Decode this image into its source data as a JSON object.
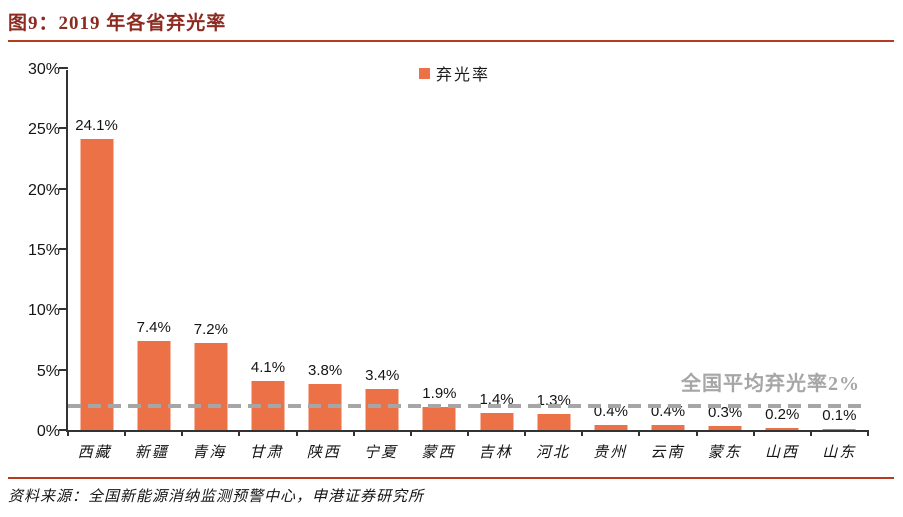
{
  "title": "图9：2019 年各省弃光率",
  "source": "资料来源：全国新能源消纳监测预警中心，申港证券研究所",
  "colors": {
    "bar": "#ED7146",
    "title_text": "#8B2B22",
    "divider": "#B53A1E",
    "axis": "#333333",
    "reference_line": "#A6A6A6",
    "annotation_text": "#A6A6A6"
  },
  "chart_data": {
    "type": "bar",
    "title": "2019 年各省弃光率",
    "series_name": "弃光率",
    "categories": [
      "西藏",
      "新疆",
      "青海",
      "甘肃",
      "陕西",
      "宁夏",
      "蒙西",
      "吉林",
      "河北",
      "贵州",
      "云南",
      "蒙东",
      "山西",
      "山东"
    ],
    "values": [
      24.1,
      7.4,
      7.2,
      4.1,
      3.8,
      3.4,
      1.9,
      1.4,
      1.3,
      0.4,
      0.4,
      0.3,
      0.2,
      0.1
    ],
    "value_labels": [
      "24.1%",
      "7.4%",
      "7.2%",
      "4.1%",
      "3.8%",
      "3.4%",
      "1.9%",
      "1.4%",
      "1.3%",
      "0.4%",
      "0.4%",
      "0.3%",
      "0.2%",
      "0.1%"
    ],
    "xlabel": "",
    "ylabel": "",
    "ylim": [
      0,
      30
    ],
    "y_ticks": [
      "0%",
      "5%",
      "10%",
      "15%",
      "20%",
      "25%",
      "30%"
    ],
    "grid": false,
    "legend_position": "top-center",
    "reference_line": {
      "value": 2,
      "label": "全国平均弃光率2%",
      "style": "dashed"
    }
  }
}
